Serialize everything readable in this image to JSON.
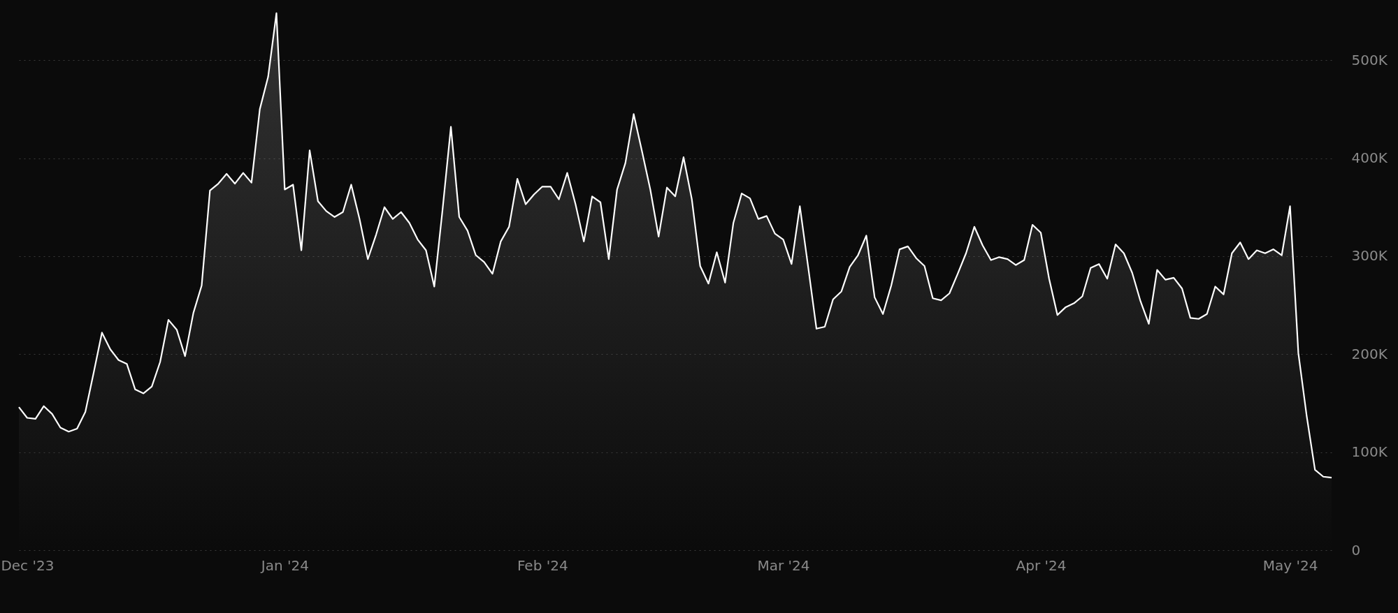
{
  "chart_data": {
    "type": "area",
    "x": [
      "2023-11-30",
      "2023-12-01",
      "2023-12-02",
      "2023-12-03",
      "2023-12-04",
      "2023-12-05",
      "2023-12-06",
      "2023-12-07",
      "2023-12-08",
      "2023-12-09",
      "2023-12-10",
      "2023-12-11",
      "2023-12-12",
      "2023-12-13",
      "2023-12-14",
      "2023-12-15",
      "2023-12-16",
      "2023-12-17",
      "2023-12-18",
      "2023-12-19",
      "2023-12-20",
      "2023-12-21",
      "2023-12-22",
      "2023-12-23",
      "2023-12-24",
      "2023-12-25",
      "2023-12-26",
      "2023-12-27",
      "2023-12-28",
      "2023-12-29",
      "2023-12-30",
      "2023-12-31",
      "2024-01-01",
      "2024-01-02",
      "2024-01-03",
      "2024-01-04",
      "2024-01-05",
      "2024-01-06",
      "2024-01-07",
      "2024-01-08",
      "2024-01-09",
      "2024-01-10",
      "2024-01-11",
      "2024-01-12",
      "2024-01-13",
      "2024-01-14",
      "2024-01-15",
      "2024-01-16",
      "2024-01-17",
      "2024-01-18",
      "2024-01-19",
      "2024-01-20",
      "2024-01-21",
      "2024-01-22",
      "2024-01-23",
      "2024-01-24",
      "2024-01-25",
      "2024-01-26",
      "2024-01-27",
      "2024-01-28",
      "2024-01-29",
      "2024-01-30",
      "2024-01-31",
      "2024-02-01",
      "2024-02-02",
      "2024-02-03",
      "2024-02-04",
      "2024-02-05",
      "2024-02-06",
      "2024-02-07",
      "2024-02-08",
      "2024-02-09",
      "2024-02-10",
      "2024-02-11",
      "2024-02-12",
      "2024-02-13",
      "2024-02-14",
      "2024-02-15",
      "2024-02-16",
      "2024-02-17",
      "2024-02-18",
      "2024-02-19",
      "2024-02-20",
      "2024-02-21",
      "2024-02-22",
      "2024-02-23",
      "2024-02-24",
      "2024-02-25",
      "2024-02-26",
      "2024-02-27",
      "2024-02-28",
      "2024-02-29",
      "2024-03-01",
      "2024-03-02",
      "2024-03-03",
      "2024-03-04",
      "2024-03-05",
      "2024-03-06",
      "2024-03-07",
      "2024-03-08",
      "2024-03-09",
      "2024-03-10",
      "2024-03-11",
      "2024-03-12",
      "2024-03-13",
      "2024-03-14",
      "2024-03-15",
      "2024-03-16",
      "2024-03-17",
      "2024-03-18",
      "2024-03-19",
      "2024-03-20",
      "2024-03-21",
      "2024-03-22",
      "2024-03-23",
      "2024-03-24",
      "2024-03-25",
      "2024-03-26",
      "2024-03-27",
      "2024-03-28",
      "2024-03-29",
      "2024-03-30",
      "2024-03-31",
      "2024-04-01",
      "2024-04-02",
      "2024-04-03",
      "2024-04-04",
      "2024-04-05",
      "2024-04-06",
      "2024-04-07",
      "2024-04-08",
      "2024-04-09",
      "2024-04-10",
      "2024-04-11",
      "2024-04-12",
      "2024-04-13",
      "2024-04-14",
      "2024-04-15",
      "2024-04-16",
      "2024-04-17",
      "2024-04-18",
      "2024-04-19",
      "2024-04-20",
      "2024-04-21",
      "2024-04-22",
      "2024-04-23",
      "2024-04-24",
      "2024-04-25",
      "2024-04-26",
      "2024-04-27",
      "2024-04-28",
      "2024-04-29",
      "2024-04-30",
      "2024-05-01",
      "2024-05-02",
      "2024-05-03",
      "2024-05-04",
      "2024-05-05",
      "2024-05-06"
    ],
    "series": [
      {
        "color": "#ffffff",
        "values": [
          146000,
          135000,
          134000,
          147000,
          139000,
          125000,
          121000,
          124000,
          141000,
          181000,
          222000,
          205000,
          194000,
          190000,
          164000,
          160000,
          167000,
          192000,
          235000,
          225000,
          198000,
          242000,
          270000,
          367000,
          374000,
          384000,
          374000,
          385000,
          375000,
          450000,
          483000,
          548000,
          368000,
          373000,
          306000,
          408000,
          356000,
          346000,
          340000,
          345000,
          373000,
          338000,
          297000,
          322000,
          350000,
          338000,
          345000,
          334000,
          317000,
          306000,
          269000,
          348000,
          432000,
          340000,
          326000,
          301000,
          294000,
          282000,
          315000,
          330000,
          379000,
          353000,
          363000,
          371000,
          371000,
          358000,
          385000,
          353000,
          315000,
          361000,
          355000,
          297000,
          368000,
          395000,
          445000,
          407000,
          368000,
          320000,
          370000,
          361000,
          401000,
          358000,
          290000,
          272000,
          304000,
          273000,
          334000,
          364000,
          359000,
          338000,
          341000,
          323000,
          317000,
          292000,
          351000,
          289000,
          226000,
          228000,
          256000,
          264000,
          289000,
          301000,
          321000,
          258000,
          241000,
          270000,
          307000,
          310000,
          298000,
          290000,
          257000,
          255000,
          262000,
          282000,
          303000,
          330000,
          311000,
          296000,
          299000,
          297000,
          291000,
          296000,
          332000,
          324000,
          277000,
          240000,
          248000,
          252000,
          259000,
          288000,
          292000,
          277000,
          312000,
          303000,
          283000,
          254000,
          231000,
          286000,
          276000,
          278000,
          267000,
          237000,
          236000,
          241000,
          269000,
          261000,
          303000,
          314000,
          297000,
          306000,
          303000,
          307000,
          301000,
          351000,
          201000,
          137000,
          82000,
          75000,
          74000
        ]
      }
    ],
    "xlim": [
      "2023-11-30",
      "2024-05-06"
    ],
    "xticks": [
      {
        "value": "2023-12-01",
        "label": "Dec '23"
      },
      {
        "value": "2024-01-01",
        "label": "Jan '24"
      },
      {
        "value": "2024-02-01",
        "label": "Feb '24"
      },
      {
        "value": "2024-03-01",
        "label": "Mar '24"
      },
      {
        "value": "2024-04-01",
        "label": "Apr '24"
      },
      {
        "value": "2024-05-01",
        "label": "May '24"
      }
    ],
    "ylim": [
      0,
      560000
    ],
    "yticks": [
      {
        "value": 0,
        "label": "0"
      },
      {
        "value": 100000,
        "label": "100K"
      },
      {
        "value": 200000,
        "label": "200K"
      },
      {
        "value": 300000,
        "label": "300K"
      },
      {
        "value": 400000,
        "label": "400K"
      },
      {
        "value": 500000,
        "label": "500K"
      }
    ],
    "grid": "y"
  }
}
